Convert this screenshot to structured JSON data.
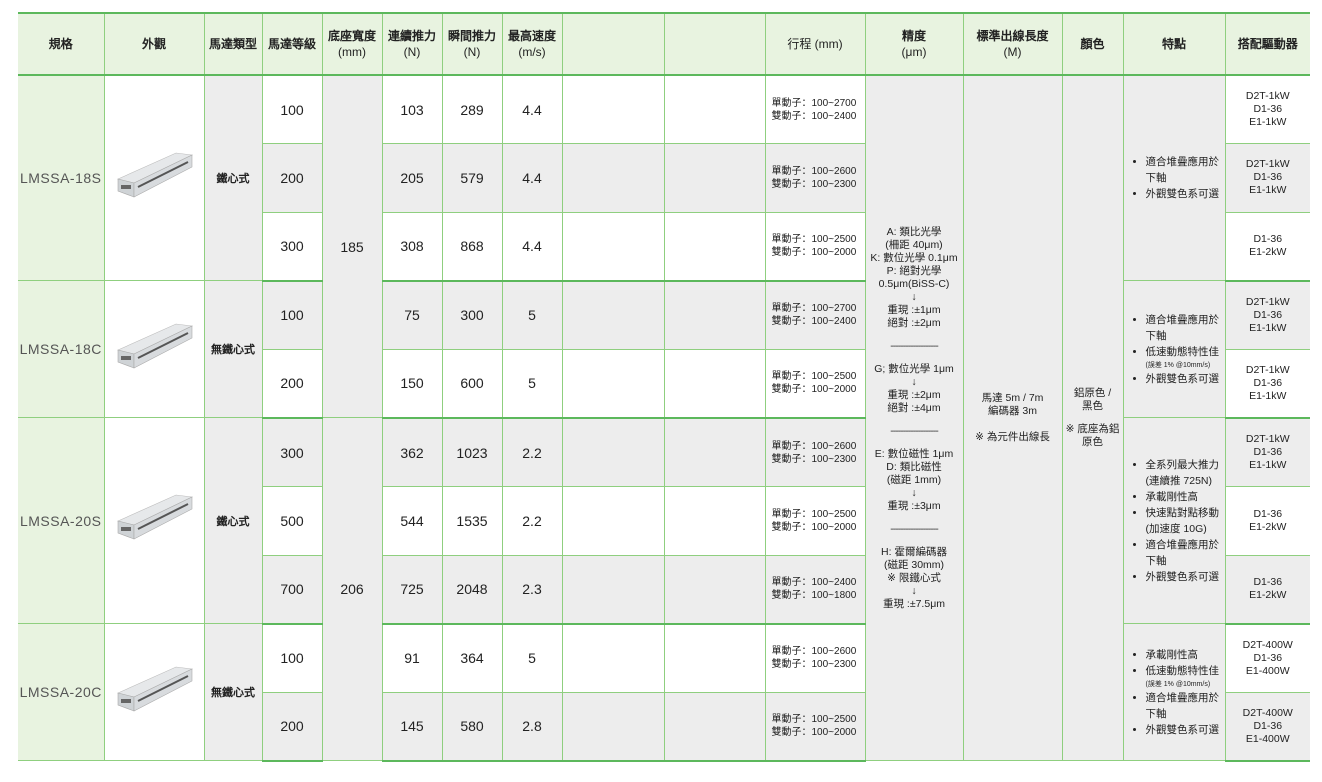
{
  "header": {
    "spec": "規格",
    "appearance": "外觀",
    "motor_type": "馬達類型",
    "motor_grade": "馬達等級",
    "base_width": "底座寬度",
    "base_width_unit": "(mm)",
    "cont_force": "連續推力",
    "cont_force_unit": "(N)",
    "peak_force": "瞬間推力",
    "peak_force_unit": "(N)",
    "max_speed": "最高速度",
    "max_speed_unit": "(m/s)",
    "stroke": "行程 (mm)",
    "accuracy": "精度",
    "accuracy_unit": "(μm)",
    "cable": "標準出線長度",
    "cable_unit": "(M)",
    "color": "顏色",
    "features": "特點",
    "driver": "搭配驅動器"
  },
  "groups": [
    {
      "model": "LMSSA-18S",
      "type": "鐵心式",
      "features": [
        "適合堆疊應用於下軸",
        "外觀雙色系可選"
      ]
    },
    {
      "model": "LMSSA-18C",
      "type": "無鐵心式",
      "features": [
        "適合堆疊應用於下軸",
        "低速動態特性佳",
        "外觀雙色系可選"
      ],
      "feature_note": "(誤差 1% @10mm/s)"
    },
    {
      "model": "LMSSA-20S",
      "type": "鐵心式",
      "features": [
        "全系列最大推力",
        "承載剛性高",
        "快速點對點移動",
        "適合堆疊應用於下軸",
        "外觀雙色系可選"
      ],
      "feature_notes": [
        "(連續推 725N)",
        "(加速度 10G)"
      ]
    },
    {
      "model": "LMSSA-20C",
      "type": "無鐵心式",
      "features": [
        "承載剛性高",
        "低速動態特性佳",
        "適合堆疊應用於下軸",
        "外觀雙色系可選"
      ],
      "feature_note": "(誤差 1% @10mm/s)"
    }
  ],
  "base_widths": [
    "185",
    "206"
  ],
  "rows": [
    {
      "grade": "100",
      "cont": "103",
      "peak": "289",
      "speed": "4.4",
      "single": "單動子：100~2700",
      "double": "雙動子：100~2400",
      "driver": [
        "D2T-1kW",
        "D1-36",
        "E1-1kW"
      ]
    },
    {
      "grade": "200",
      "cont": "205",
      "peak": "579",
      "speed": "4.4",
      "single": "單動子：100~2600",
      "double": "雙動子：100~2300",
      "driver": [
        "D2T-1kW",
        "D1-36",
        "E1-1kW"
      ]
    },
    {
      "grade": "300",
      "cont": "308",
      "peak": "868",
      "speed": "4.4",
      "single": "單動子：100~2500",
      "double": "雙動子：100~2000",
      "driver": [
        "D1-36",
        "E1-2kW"
      ]
    },
    {
      "grade": "100",
      "cont": "75",
      "peak": "300",
      "speed": "5",
      "single": "單動子：100~2700",
      "double": "雙動子：100~2400",
      "driver": [
        "D2T-1kW",
        "D1-36",
        "E1-1kW"
      ]
    },
    {
      "grade": "200",
      "cont": "150",
      "peak": "600",
      "speed": "5",
      "single": "單動子：100~2500",
      "double": "雙動子：100~2000",
      "driver": [
        "D2T-1kW",
        "D1-36",
        "E1-1kW"
      ]
    },
    {
      "grade": "300",
      "cont": "362",
      "peak": "1023",
      "speed": "2.2",
      "single": "單動子：100~2600",
      "double": "雙動子：100~2300",
      "driver": [
        "D2T-1kW",
        "D1-36",
        "E1-1kW"
      ]
    },
    {
      "grade": "500",
      "cont": "544",
      "peak": "1535",
      "speed": "2.2",
      "single": "單動子：100~2500",
      "double": "雙動子：100~2000",
      "driver": [
        "D1-36",
        "E1-2kW"
      ]
    },
    {
      "grade": "700",
      "cont": "725",
      "peak": "2048",
      "speed": "2.3",
      "single": "單動子：100~2400",
      "double": "雙動子：100~1800",
      "driver": [
        "D1-36",
        "E1-2kW"
      ]
    },
    {
      "grade": "100",
      "cont": "91",
      "peak": "364",
      "speed": "5",
      "single": "單動子：100~2600",
      "double": "雙動子：100~2300",
      "driver": [
        "D2T-400W",
        "D1-36",
        "E1-400W"
      ]
    },
    {
      "grade": "200",
      "cont": "145",
      "peak": "580",
      "speed": "2.8",
      "single": "單動子：100~2500",
      "double": "雙動子：100~2000",
      "driver": [
        "D2T-400W",
        "D1-36",
        "E1-400W"
      ]
    }
  ],
  "accuracy": {
    "block1": [
      "A: 類比光學",
      "(柵距 40μm)",
      "K: 數位光學 0.1μm",
      "P: 絕對光學",
      "0.5μm(BiSS-C)",
      "↓",
      "重現 :±1μm",
      "絕對 :±2μm"
    ],
    "block2": [
      "G; 數位光學 1μm",
      "↓",
      "重現 :±2μm",
      "絕對 :±4μm"
    ],
    "block3": [
      "E: 數位磁性 1μm",
      "D: 類比磁性",
      "(磁距 1mm)",
      "↓",
      "重現 :±3μm"
    ],
    "block4": [
      "H: 霍爾編碼器",
      "(磁距 30mm)",
      "※ 限鐵心式",
      "↓",
      "重現 :±7.5μm"
    ],
    "divider": "-------------------"
  },
  "cable": [
    "馬達 5m / 7m",
    "編碼器 3m",
    "※ 為元件出線長"
  ],
  "color": [
    "鋁原色 /",
    "黑色",
    "※ 底座為鋁",
    "原色"
  ]
}
